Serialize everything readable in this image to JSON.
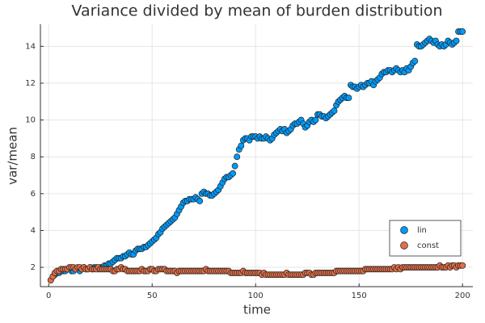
{
  "chart_data": {
    "type": "scatter",
    "title": "Variance divided by mean of burden distribution",
    "x_label": "time",
    "y_label": "var/mean",
    "xlim": [
      -4,
      205
    ],
    "ylim": [
      0.95,
      15.2
    ],
    "xticks": [
      0,
      50,
      100,
      150,
      200
    ],
    "yticks": [
      2,
      4,
      6,
      8,
      10,
      12,
      14
    ],
    "grid": true,
    "legend": "bottom right",
    "x": [
      1,
      2,
      3,
      4,
      5,
      6,
      7,
      8,
      9,
      10,
      11,
      12,
      13,
      14,
      15,
      16,
      17,
      18,
      19,
      20,
      21,
      22,
      23,
      24,
      25,
      26,
      27,
      28,
      29,
      30,
      31,
      32,
      33,
      34,
      35,
      36,
      37,
      38,
      39,
      40,
      41,
      42,
      43,
      44,
      45,
      46,
      47,
      48,
      49,
      50,
      51,
      52,
      53,
      54,
      55,
      56,
      57,
      58,
      59,
      60,
      61,
      62,
      63,
      64,
      65,
      66,
      67,
      68,
      69,
      70,
      71,
      72,
      73,
      74,
      75,
      76,
      77,
      78,
      79,
      80,
      81,
      82,
      83,
      84,
      85,
      86,
      87,
      88,
      89,
      90,
      91,
      92,
      93,
      94,
      95,
      96,
      97,
      98,
      99,
      100,
      101,
      102,
      103,
      104,
      105,
      106,
      107,
      108,
      109,
      110,
      111,
      112,
      113,
      114,
      115,
      116,
      117,
      118,
      119,
      120,
      121,
      122,
      123,
      124,
      125,
      126,
      127,
      128,
      129,
      130,
      131,
      132,
      133,
      134,
      135,
      136,
      137,
      138,
      139,
      140,
      141,
      142,
      143,
      144,
      145,
      146,
      147,
      148,
      149,
      150,
      151,
      152,
      153,
      154,
      155,
      156,
      157,
      158,
      159,
      160,
      161,
      162,
      163,
      164,
      165,
      166,
      167,
      168,
      169,
      170,
      171,
      172,
      173,
      174,
      175,
      176,
      177,
      178,
      179,
      180,
      181,
      182,
      183,
      184,
      185,
      186,
      187,
      188,
      189,
      190,
      191,
      192,
      193,
      194,
      195,
      196,
      197,
      198,
      199,
      200
    ],
    "series": [
      {
        "name": "lin",
        "color": "#009af9",
        "values": [
          1.3,
          1.5,
          1.6,
          1.7,
          1.7,
          1.8,
          1.8,
          1.8,
          1.9,
          1.9,
          1.8,
          1.8,
          1.9,
          1.9,
          1.8,
          1.9,
          2.0,
          1.9,
          1.9,
          2.0,
          1.9,
          2.0,
          2.0,
          1.9,
          2.0,
          2.0,
          2.1,
          2.1,
          2.2,
          2.2,
          2.3,
          2.4,
          2.5,
          2.5,
          2.5,
          2.6,
          2.6,
          2.7,
          2.8,
          2.7,
          2.7,
          2.9,
          3.0,
          3.0,
          3.0,
          3.1,
          3.1,
          3.2,
          3.3,
          3.4,
          3.5,
          3.6,
          3.8,
          3.9,
          4.1,
          4.2,
          4.3,
          4.4,
          4.5,
          4.6,
          4.7,
          4.9,
          5.1,
          5.3,
          5.5,
          5.6,
          5.6,
          5.7,
          5.7,
          5.7,
          5.8,
          5.7,
          5.6,
          6.0,
          6.1,
          6.0,
          6.0,
          5.9,
          5.9,
          6.0,
          6.1,
          6.2,
          6.4,
          6.6,
          6.8,
          6.9,
          6.9,
          7.0,
          7.1,
          7.5,
          8.0,
          8.4,
          8.6,
          8.9,
          9.0,
          9.0,
          8.9,
          9.1,
          9.1,
          9.1,
          9.0,
          9.1,
          9.0,
          9.0,
          9.1,
          9.0,
          8.9,
          9.0,
          9.2,
          9.3,
          9.4,
          9.5,
          9.4,
          9.5,
          9.3,
          9.4,
          9.5,
          9.7,
          9.8,
          9.8,
          9.9,
          10.0,
          9.8,
          9.6,
          9.7,
          9.9,
          10.0,
          9.9,
          10.0,
          10.3,
          10.3,
          10.2,
          10.2,
          10.1,
          10.2,
          10.3,
          10.4,
          10.5,
          10.8,
          11.0,
          11.1,
          11.2,
          11.3,
          11.2,
          11.2,
          11.9,
          11.8,
          11.8,
          11.7,
          11.8,
          11.9,
          11.8,
          11.9,
          12.0,
          12.0,
          12.1,
          11.9,
          12.1,
          12.2,
          12.3,
          12.5,
          12.6,
          12.6,
          12.7,
          12.7,
          12.6,
          12.7,
          12.8,
          12.7,
          12.6,
          12.7,
          12.6,
          12.8,
          12.7,
          12.9,
          13.1,
          13.2,
          14.1,
          14.0,
          14.0,
          14.1,
          14.2,
          14.3,
          14.4,
          14.3,
          14.2,
          14.3,
          14.1,
          14.0,
          14.1,
          14.0,
          14.1,
          14.3,
          14.2,
          14.1,
          14.2,
          14.3,
          14.8,
          14.8,
          14.8
        ]
      },
      {
        "name": "const",
        "color": "#e26f46",
        "values": [
          1.3,
          1.5,
          1.7,
          1.8,
          1.8,
          1.9,
          1.9,
          1.9,
          1.9,
          2.0,
          2.0,
          2.0,
          1.9,
          2.0,
          2.0,
          1.9,
          2.0,
          1.9,
          1.9,
          2.0,
          1.9,
          1.9,
          1.9,
          2.0,
          1.9,
          1.9,
          1.9,
          1.9,
          1.9,
          1.9,
          1.8,
          1.8,
          1.9,
          1.9,
          2.0,
          1.9,
          1.9,
          1.8,
          1.8,
          1.8,
          1.8,
          1.8,
          1.8,
          1.8,
          1.9,
          1.8,
          1.8,
          1.8,
          1.9,
          1.9,
          1.8,
          1.8,
          1.9,
          1.9,
          1.9,
          1.9,
          1.8,
          1.8,
          1.8,
          1.8,
          1.8,
          1.7,
          1.8,
          1.8,
          1.8,
          1.8,
          1.8,
          1.8,
          1.8,
          1.8,
          1.8,
          1.8,
          1.8,
          1.8,
          1.8,
          1.9,
          1.8,
          1.8,
          1.8,
          1.8,
          1.8,
          1.8,
          1.8,
          1.8,
          1.8,
          1.8,
          1.8,
          1.7,
          1.7,
          1.7,
          1.7,
          1.7,
          1.7,
          1.8,
          1.7,
          1.7,
          1.7,
          1.7,
          1.7,
          1.7,
          1.7,
          1.7,
          1.6,
          1.7,
          1.6,
          1.6,
          1.6,
          1.6,
          1.6,
          1.6,
          1.6,
          1.6,
          1.6,
          1.6,
          1.7,
          1.6,
          1.6,
          1.6,
          1.6,
          1.6,
          1.6,
          1.6,
          1.6,
          1.7,
          1.7,
          1.7,
          1.6,
          1.6,
          1.7,
          1.7,
          1.7,
          1.7,
          1.7,
          1.7,
          1.7,
          1.7,
          1.7,
          1.7,
          1.8,
          1.8,
          1.8,
          1.8,
          1.8,
          1.8,
          1.8,
          1.8,
          1.8,
          1.8,
          1.8,
          1.8,
          1.8,
          1.8,
          1.9,
          1.9,
          1.9,
          1.9,
          1.9,
          1.9,
          1.9,
          1.9,
          1.9,
          1.9,
          1.9,
          1.9,
          1.9,
          1.9,
          2.0,
          1.9,
          2.0,
          1.9,
          2.0,
          2.0,
          2.0,
          2.0,
          2.0,
          2.0,
          2.0,
          2.0,
          2.0,
          2.0,
          2.0,
          2.0,
          2.0,
          2.0,
          2.0,
          2.0,
          2.0,
          2.0,
          2.1,
          2.0,
          2.0,
          2.0,
          2.1,
          2.0,
          2.1,
          2.1,
          2.0,
          2.1,
          2.1,
          2.1
        ]
      }
    ]
  }
}
